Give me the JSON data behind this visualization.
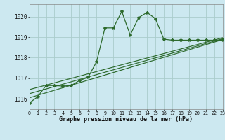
{
  "title": "Graphe pression niveau de la mer (hPa)",
  "bg_color": "#cce8f0",
  "grid_color": "#aacccc",
  "line_color": "#2d6a2d",
  "x_min": 0,
  "x_max": 23,
  "y_min": 1015.5,
  "y_max": 1020.6,
  "y_ticks": [
    1016,
    1017,
    1018,
    1019,
    1020
  ],
  "x_ticks": [
    0,
    1,
    2,
    3,
    4,
    5,
    6,
    7,
    8,
    9,
    10,
    11,
    12,
    13,
    14,
    15,
    16,
    17,
    18,
    19,
    20,
    21,
    22,
    23
  ],
  "main_series": [
    [
      0,
      1015.8
    ],
    [
      1,
      1016.1
    ],
    [
      2,
      1016.65
    ],
    [
      3,
      1016.65
    ],
    [
      4,
      1016.62
    ],
    [
      5,
      1016.65
    ],
    [
      6,
      1016.9
    ],
    [
      7,
      1017.05
    ],
    [
      8,
      1017.8
    ],
    [
      9,
      1019.45
    ],
    [
      10,
      1019.45
    ],
    [
      11,
      1020.25
    ],
    [
      12,
      1019.1
    ],
    [
      13,
      1019.95
    ],
    [
      14,
      1020.2
    ],
    [
      15,
      1019.9
    ],
    [
      16,
      1018.9
    ],
    [
      17,
      1018.85
    ],
    [
      18,
      1018.85
    ],
    [
      19,
      1018.85
    ],
    [
      20,
      1018.85
    ],
    [
      21,
      1018.85
    ],
    [
      22,
      1018.85
    ],
    [
      23,
      1018.85
    ]
  ],
  "trend_lines": [
    [
      [
        0,
        1016.05
      ],
      [
        23,
        1018.88
      ]
    ],
    [
      [
        0,
        1016.25
      ],
      [
        23,
        1018.92
      ]
    ],
    [
      [
        0,
        1016.45
      ],
      [
        23,
        1018.97
      ]
    ]
  ]
}
